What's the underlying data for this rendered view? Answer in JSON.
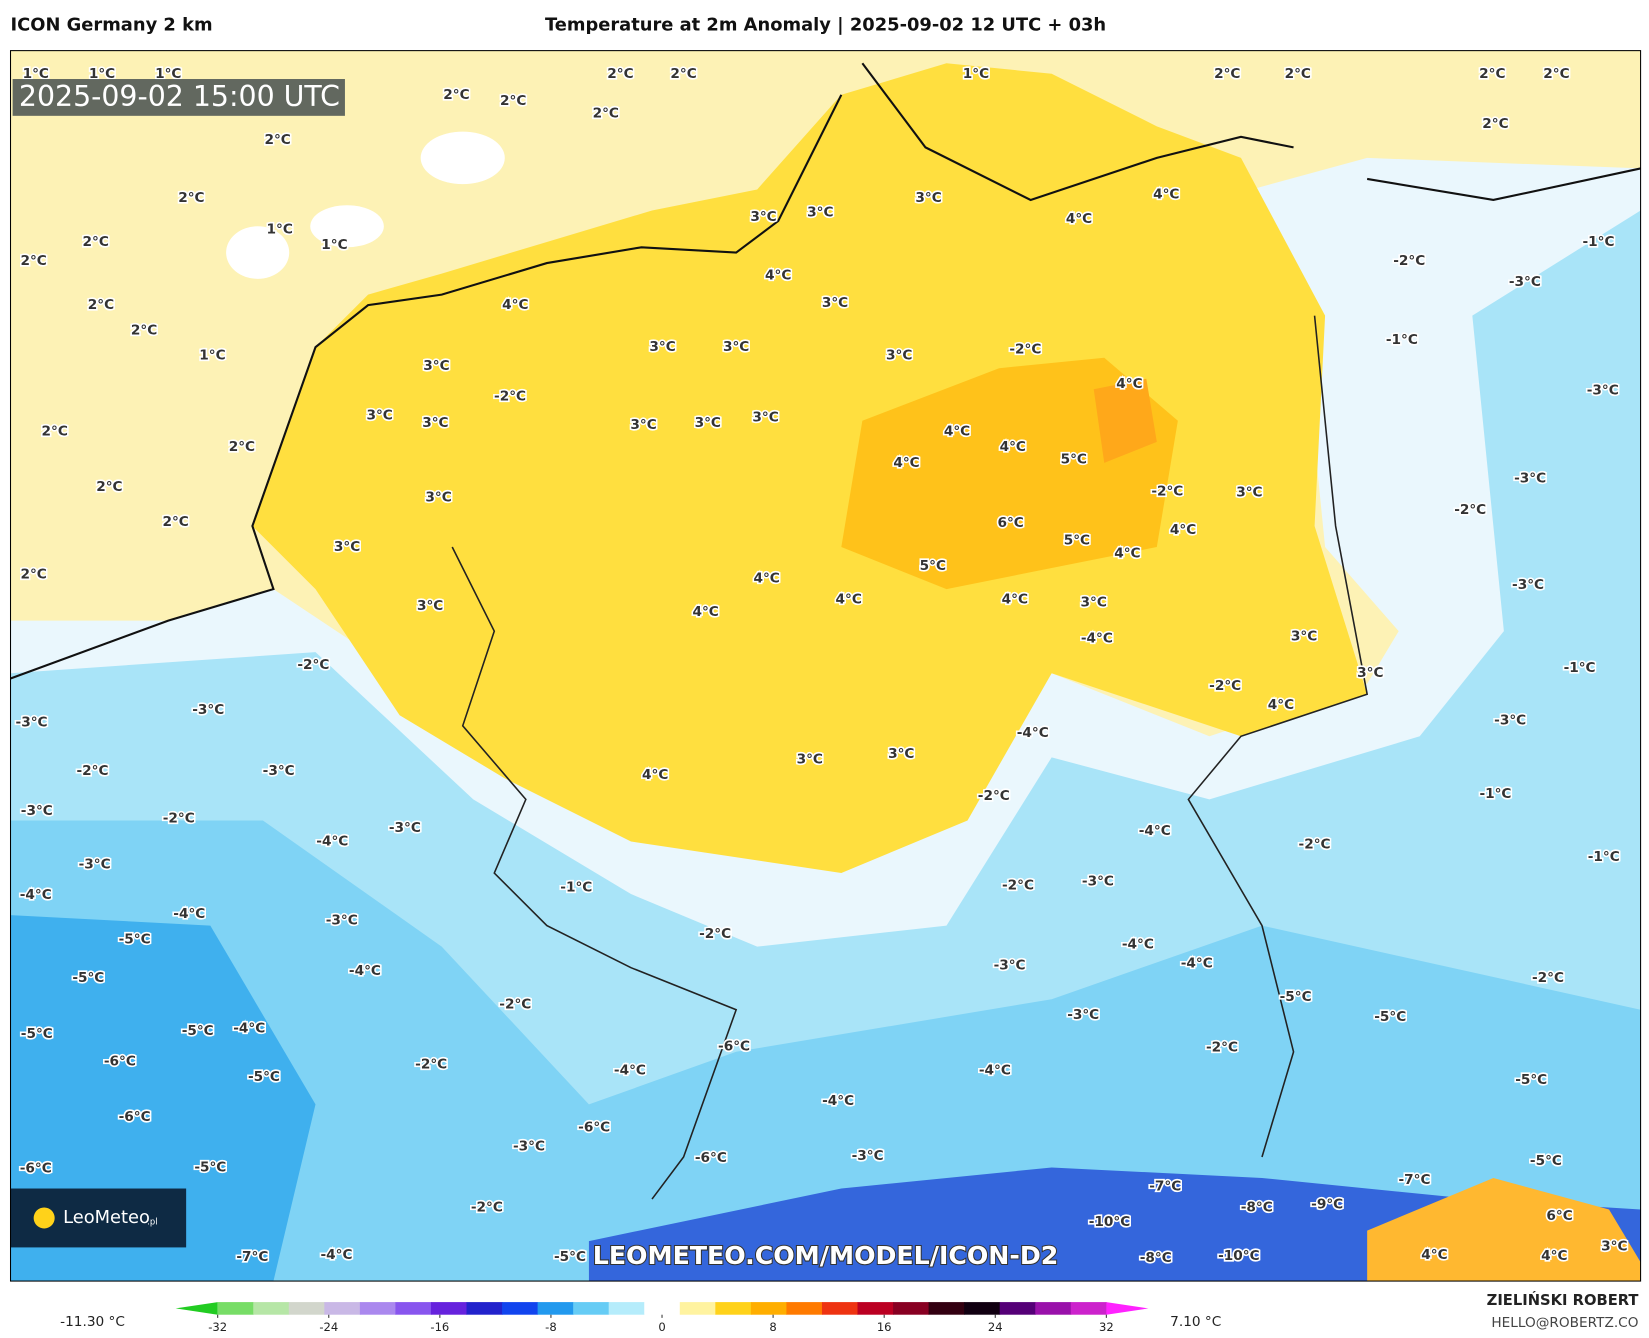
{
  "header": {
    "model": "ICON Germany 2 km",
    "title": "Temperature at 2m Anomaly | 2025-09-02 12 UTC + 03h"
  },
  "map": {
    "valid_time": "2025-09-02 15:00 UTC",
    "logo": "LeoMeteo",
    "logo_suffix": ".pl",
    "watermark": "LEOMETEO.COM/MODEL/ICON-D2",
    "contour_labels": [
      "2°C",
      "2°C",
      "2°C",
      "2°C",
      "2°C",
      "2°C",
      "2°C",
      "2°C",
      "2°C",
      "2°C",
      "2°C",
      "2°C",
      "2°C",
      "2°C",
      "2°C",
      "2°C",
      "2°C",
      "2°C",
      "2°C",
      "2°C",
      "2°C",
      "1°C",
      "1°C",
      "1°C",
      "1°C",
      "1°C",
      "1°C",
      "1°C",
      "3°C",
      "3°C",
      "3°C",
      "3°C",
      "3°C",
      "3°C",
      "3°C",
      "3°C",
      "3°C",
      "3°C",
      "3°C",
      "3°C",
      "3°C",
      "3°C",
      "3°C",
      "3°C",
      "3°C",
      "3°C",
      "3°C",
      "3°C",
      "3°C",
      "3°C",
      "4°C",
      "4°C",
      "4°C",
      "4°C",
      "4°C",
      "4°C",
      "4°C",
      "4°C",
      "4°C",
      "4°C",
      "4°C",
      "4°C",
      "4°C",
      "4°C",
      "4°C",
      "4°C",
      "5°C",
      "5°C",
      "5°C",
      "6°C",
      "-2°C",
      "-2°C",
      "-2°C",
      "-2°C",
      "-2°C",
      "-2°C",
      "-2°C",
      "-2°C",
      "-2°C",
      "-2°C",
      "-2°C",
      "-2°C",
      "-2°C",
      "-2°C",
      "-2°C",
      "-2°C",
      "-2°C",
      "-2°C",
      "-1°C",
      "-1°C",
      "-1°C",
      "-1°C",
      "-1°C",
      "-1°C",
      "-3°C",
      "-3°C",
      "-3°C",
      "-3°C",
      "-3°C",
      "-3°C",
      "-3°C",
      "-3°C",
      "-3°C",
      "-3°C",
      "-3°C",
      "-3°C",
      "-3°C",
      "-3°C",
      "-3°C",
      "-3°C",
      "-3°C",
      "-4°C",
      "-4°C",
      "-4°C",
      "-4°C",
      "-4°C",
      "-4°C",
      "-4°C",
      "-4°C",
      "-4°C",
      "-4°C",
      "-4°C",
      "-4°C",
      "-4°C",
      "-4°C",
      "-5°C",
      "-5°C",
      "-5°C",
      "-5°C",
      "-5°C",
      "-5°C",
      "-5°C",
      "-5°C",
      "-5°C",
      "-5°C",
      "-5°C",
      "-6°C",
      "-6°C",
      "-6°C",
      "-6°C",
      "-6°C",
      "-6°C",
      "-7°C",
      "-7°C",
      "-7°C",
      "-8°C",
      "-8°C",
      "-9°C",
      "-10°C",
      "-10°C",
      "6°C",
      "4°C",
      "4°C",
      "3°C"
    ]
  },
  "colorbar": {
    "ticks": [
      -32,
      -24,
      -16,
      -8,
      0,
      8,
      16,
      24,
      32
    ],
    "min_label": "-11.30 °C",
    "max_label": "7.10 °C",
    "colors": [
      "#22cc22",
      "#77dd66",
      "#b6e6a6",
      "#d2d6cc",
      "#c9b8e6",
      "#aa88ee",
      "#8855ee",
      "#6622dd",
      "#2222cc",
      "#1144ee",
      "#2299ee",
      "#66ccf5",
      "#b5ecfb",
      "#ffffff",
      "#fff3a0",
      "#ffd21a",
      "#ffae00",
      "#ff7a00",
      "#ee3311",
      "#bb0022",
      "#880022",
      "#330011",
      "#110011",
      "#550077",
      "#9911aa",
      "#cc22cc",
      "#ff22ff"
    ]
  },
  "credit": {
    "author": "ZIELIŃSKI ROBERT",
    "email": "HELLO@ROBERTZ.CO"
  }
}
